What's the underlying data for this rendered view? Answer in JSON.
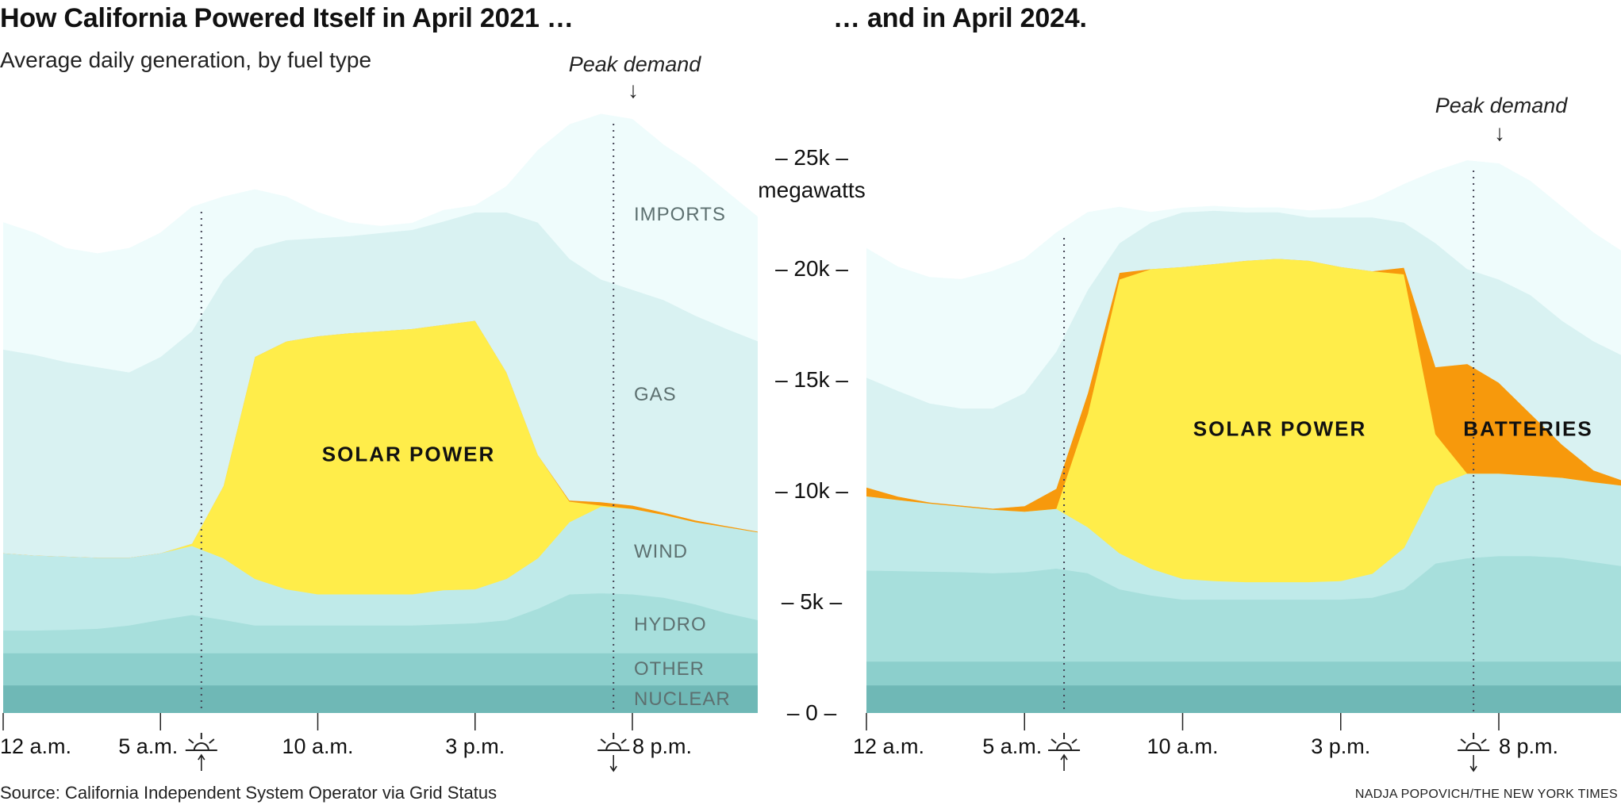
{
  "titles": {
    "left": "How California Powered Itself in April 2021 …",
    "right": "… and in April 2024.",
    "subtitle": "Average daily generation, by fuel type"
  },
  "annotations": {
    "peak_demand": "Peak demand",
    "arrow_down": "↓",
    "arrow_up": "↑"
  },
  "footer": {
    "source": "Source: California Independent System Operator via Grid Status",
    "credit": "NADJA POPOVICH/THE NEW YORK TIMES"
  },
  "layer_labels": {
    "imports": "IMPORTS",
    "gas": "GAS",
    "wind": "WIND",
    "hydro": "HYDRO",
    "other": "OTHER",
    "nuclear": "NUCLEAR",
    "solar": "SOLAR POWER",
    "batteries": "BATTERIES"
  },
  "chart_data": [
    {
      "type": "area",
      "stacked": true,
      "title": "How California Powered Itself in April 2021 …",
      "ylabel": "megawatts",
      "ylim": [
        0,
        25000
      ],
      "yticks": [
        "0",
        "5k",
        "10k",
        "15k",
        "20k",
        "25k"
      ],
      "ytick_values": [
        0,
        5000,
        10000,
        15000,
        20000,
        25000
      ],
      "xticks": [
        "12 a.m.",
        "5 a.m.",
        "10 a.m.",
        "3 p.m.",
        "8 p.m."
      ],
      "xtick_hours": [
        0,
        5,
        10,
        15,
        20
      ],
      "sunrise_hour": 6.3,
      "sunset_hour": 19.4,
      "peak_demand_hour": 19.4,
      "grid": false,
      "hours": [
        0,
        1,
        2,
        3,
        4,
        5,
        6,
        7,
        8,
        9,
        10,
        11,
        12,
        13,
        14,
        15,
        16,
        17,
        18,
        19,
        20,
        21,
        22,
        23,
        24
      ],
      "series": [
        {
          "name": "NUCLEAR",
          "color": "#6fb8b6",
          "values": [
            1250,
            1250,
            1250,
            1250,
            1250,
            1250,
            1250,
            1250,
            1250,
            1250,
            1250,
            1250,
            1250,
            1250,
            1250,
            1250,
            1250,
            1250,
            1250,
            1250,
            1250,
            1250,
            1250,
            1250,
            1250
          ]
        },
        {
          "name": "OTHER",
          "color": "#8ccfcc",
          "values": [
            1450,
            1450,
            1450,
            1450,
            1450,
            1450,
            1450,
            1450,
            1450,
            1450,
            1450,
            1450,
            1450,
            1450,
            1450,
            1450,
            1450,
            1450,
            1450,
            1450,
            1450,
            1450,
            1450,
            1450,
            1450
          ]
        },
        {
          "name": "HYDRO",
          "color": "#a7dfdc",
          "values": [
            1020,
            1020,
            1050,
            1100,
            1250,
            1500,
            1720,
            1500,
            1250,
            1250,
            1250,
            1250,
            1250,
            1250,
            1300,
            1350,
            1485,
            2000,
            2650,
            2700,
            2650,
            2500,
            2200,
            1800,
            1485
          ]
        },
        {
          "name": "WIND",
          "color": "#bfeae9",
          "values": [
            3480,
            3380,
            3300,
            3200,
            3050,
            3000,
            3110,
            2775,
            2095,
            1630,
            1400,
            1400,
            1400,
            1400,
            1540,
            1530,
            1860,
            2275,
            3250,
            3900,
            3850,
            3730,
            3700,
            3870,
            3955
          ]
        },
        {
          "name": "SOLAR POWER",
          "color": "#ffed4a",
          "values": [
            0,
            0,
            0,
            0,
            0,
            0,
            100,
            3255,
            9995,
            11160,
            11620,
            11760,
            11850,
            11950,
            11950,
            12090,
            9300,
            4650,
            930,
            50,
            0,
            0,
            0,
            0,
            0
          ]
        },
        {
          "name": "BATTERIES",
          "color": "#f7990c",
          "values": [
            0,
            0,
            0,
            0,
            0,
            0,
            0,
            0,
            0,
            0,
            0,
            0,
            0,
            0,
            0,
            0,
            0,
            0,
            50,
            150,
            150,
            100,
            80,
            50,
            30
          ]
        },
        {
          "name": "GAS",
          "color": "#d9f2f2",
          "values": [
            9170,
            9035,
            8760,
            8580,
            8345,
            8840,
            9570,
            9300,
            4885,
            4560,
            4420,
            4370,
            4420,
            4460,
            4650,
            4880,
            7205,
            10465,
            10880,
            10030,
            9715,
            9570,
            9220,
            8880,
            8570
          ]
        },
        {
          "name": "IMPORTS",
          "color": "#effcfc",
          "values": [
            5720,
            5485,
            5115,
            5110,
            5580,
            5580,
            5585,
            3720,
            2650,
            1950,
            1160,
            600,
            300,
            300,
            500,
            300,
            1165,
            3250,
            6040,
            7440,
            7675,
            6975,
            6745,
            6180,
            5580
          ]
        }
      ]
    },
    {
      "type": "area",
      "stacked": true,
      "title": "… and in April 2024.",
      "ylabel": "megawatts",
      "ylim": [
        0,
        25000
      ],
      "xticks": [
        "12 a.m.",
        "5 a.m.",
        "10 a.m.",
        "3 p.m.",
        "8 p.m."
      ],
      "xtick_hours": [
        0,
        5,
        10,
        15,
        20
      ],
      "sunrise_hour": 6.25,
      "sunset_hour": 19.2,
      "peak_demand_hour": 19.2,
      "grid": false,
      "hours": [
        0,
        1,
        2,
        3,
        4,
        5,
        6,
        7,
        8,
        9,
        10,
        11,
        12,
        13,
        14,
        15,
        16,
        17,
        18,
        19,
        20,
        21,
        22,
        23,
        24
      ],
      "series": [
        {
          "name": "NUCLEAR",
          "color": "#6fb8b6",
          "values": [
            1250,
            1250,
            1250,
            1250,
            1250,
            1250,
            1250,
            1250,
            1250,
            1250,
            1250,
            1250,
            1250,
            1250,
            1250,
            1250,
            1250,
            1250,
            1250,
            1250,
            1250,
            1250,
            1250,
            1250,
            1250
          ]
        },
        {
          "name": "OTHER",
          "color": "#8ccfcc",
          "values": [
            1075,
            1075,
            1075,
            1075,
            1075,
            1075,
            1075,
            1075,
            1075,
            1075,
            1075,
            1075,
            1075,
            1075,
            1075,
            1075,
            1075,
            1075,
            1075,
            1075,
            1075,
            1075,
            1075,
            1075,
            1075
          ]
        },
        {
          "name": "HYDRO",
          "color": "#a7dfdc",
          "values": [
            4095,
            4075,
            4045,
            4025,
            3975,
            4025,
            4185,
            3975,
            3255,
            2975,
            2790,
            2790,
            2790,
            2790,
            2790,
            2790,
            2875,
            3255,
            4415,
            4650,
            4745,
            4745,
            4675,
            4475,
            4275
          ]
        },
        {
          "name": "WIND",
          "color": "#bfeae9",
          "values": [
            3345,
            3200,
            3070,
            2950,
            2860,
            2720,
            2690,
            2070,
            1620,
            1200,
            930,
            835,
            785,
            785,
            785,
            835,
            1080,
            1860,
            3490,
            3815,
            3720,
            3630,
            3600,
            3600,
            3630
          ]
        },
        {
          "name": "SOLAR POWER",
          "color": "#ffed4a",
          "values": [
            0,
            0,
            0,
            0,
            0,
            0,
            0,
            5115,
            12330,
            13495,
            14045,
            14275,
            14470,
            14560,
            14470,
            14140,
            13620,
            12320,
            2325,
            0,
            0,
            0,
            0,
            0,
            0
          ]
        },
        {
          "name": "BATTERIES",
          "color": "#f7990c",
          "values": [
            400,
            150,
            50,
            50,
            50,
            250,
            900,
            930,
            300,
            0,
            0,
            0,
            0,
            0,
            0,
            0,
            0,
            300,
            3025,
            4930,
            4090,
            2785,
            1490,
            530,
            200
          ]
        },
        {
          "name": "GAS",
          "color": "#d9f2f2",
          "values": [
            4945,
            4760,
            4460,
            4370,
            4510,
            5095,
            6175,
            4650,
            1330,
            2095,
            2460,
            2400,
            2180,
            2100,
            1950,
            2230,
            2420,
            2030,
            5580,
            4275,
            4650,
            5345,
            5580,
            5810,
            5610
          ]
        },
        {
          "name": "IMPORTS",
          "color": "#effcfc",
          "values": [
            5815,
            5580,
            5670,
            5810,
            6180,
            6045,
            5345,
            3485,
            1625,
            460,
            200,
            200,
            200,
            200,
            300,
            400,
            800,
            1720,
            3250,
            4885,
            5210,
            5120,
            5115,
            4880,
            4650
          ]
        }
      ]
    }
  ]
}
